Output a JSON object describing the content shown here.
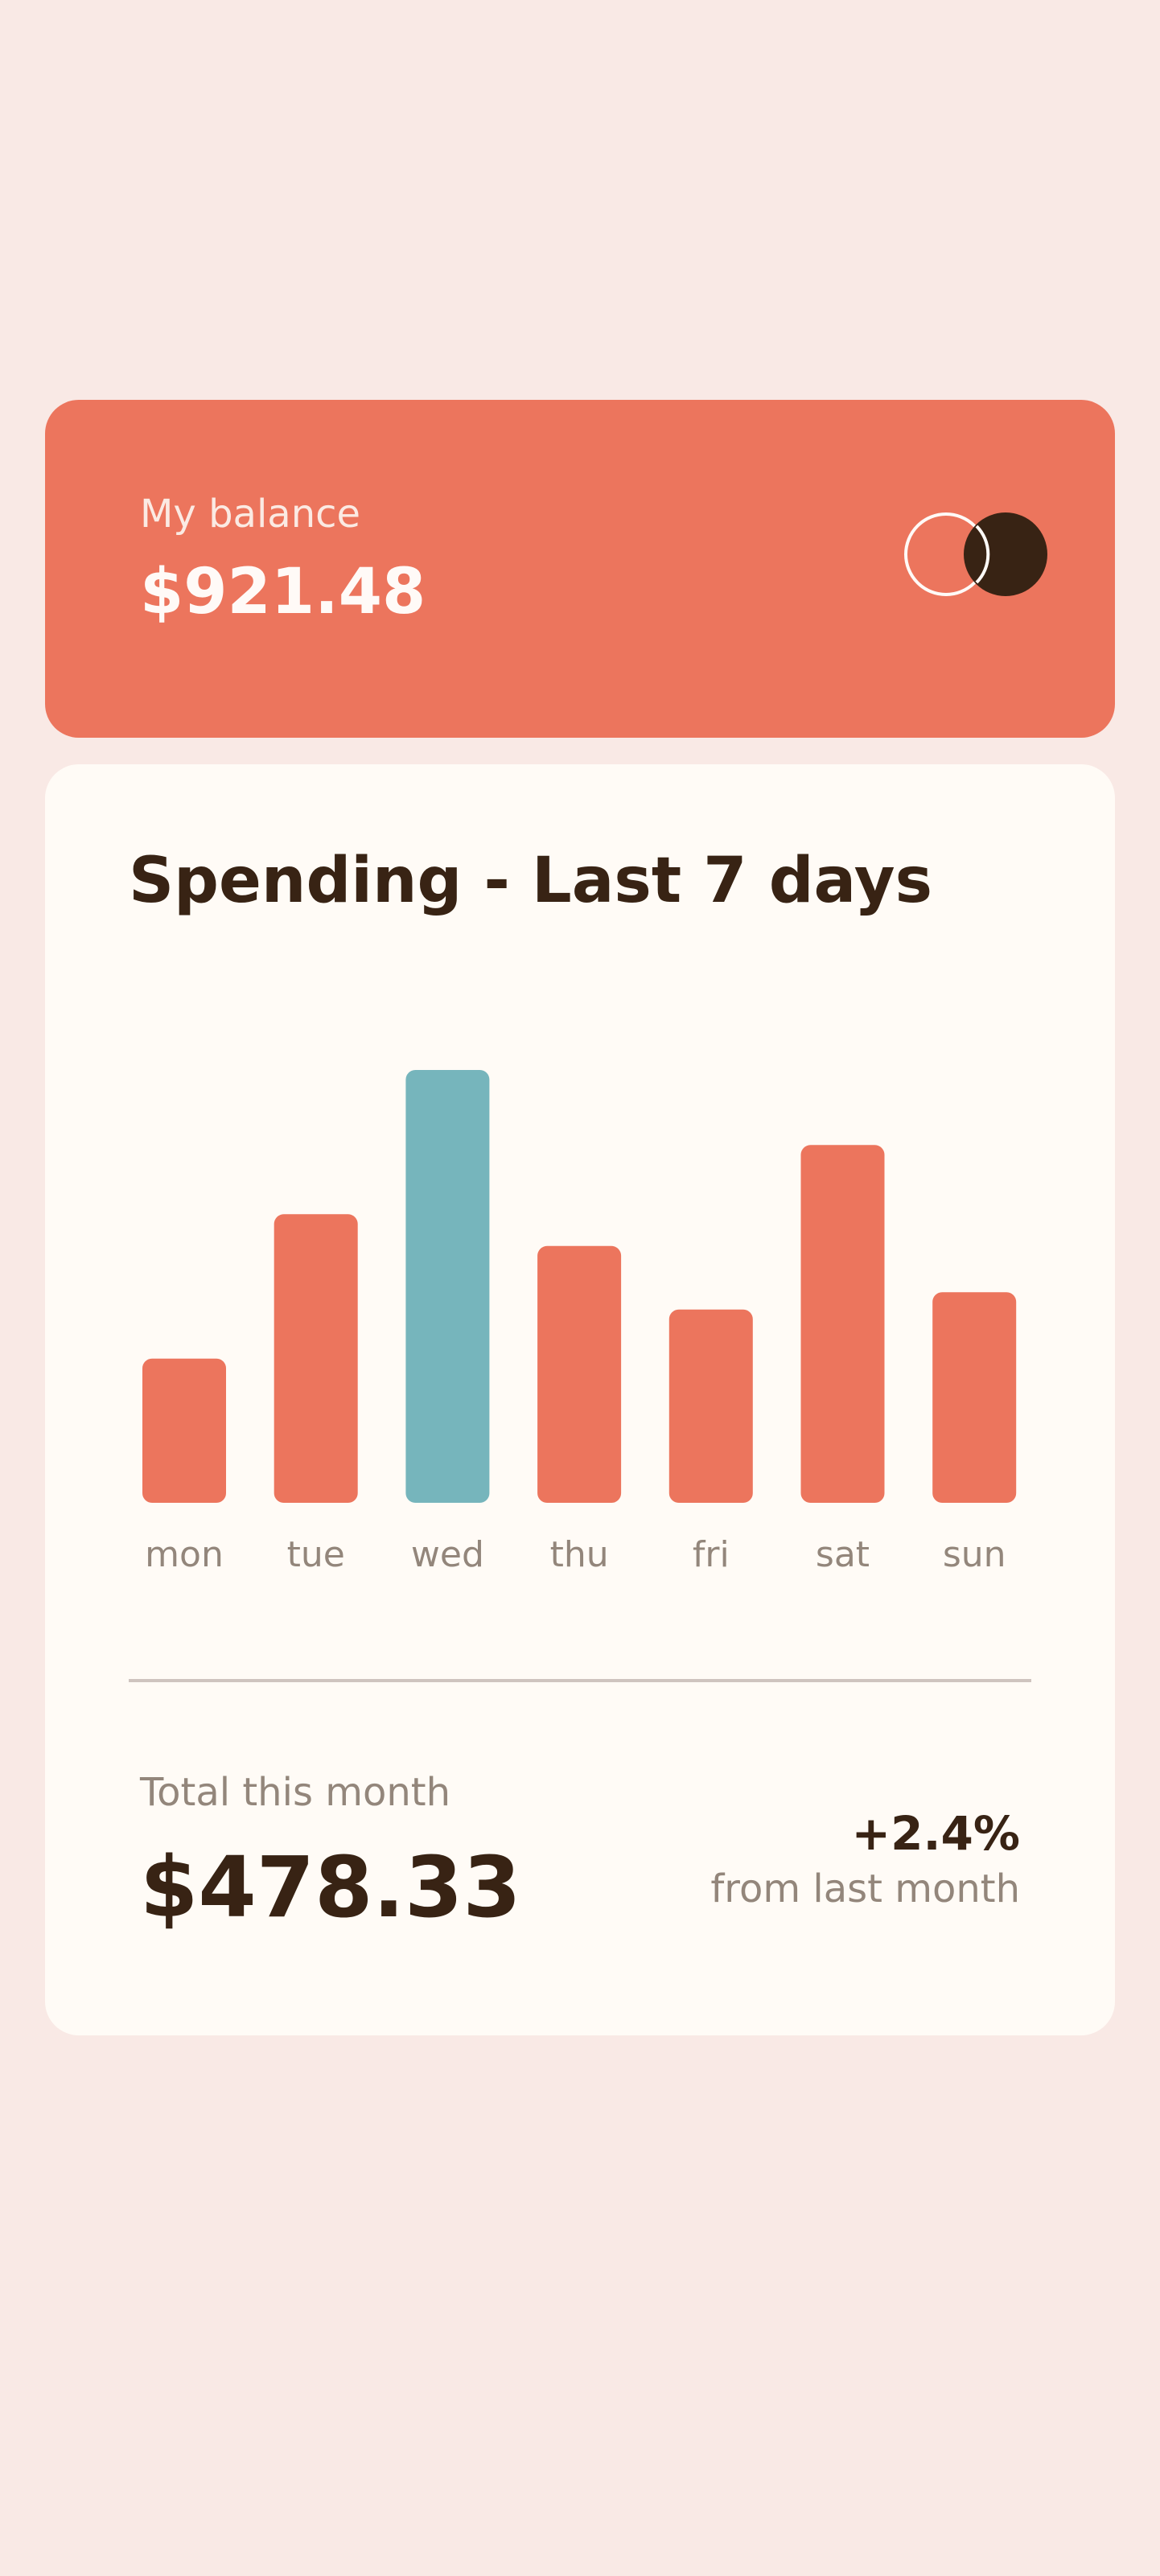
{
  "balance": {
    "label": "My balance",
    "amount": "$921.48"
  },
  "logo": {
    "icon": "overlapping-circles-logo"
  },
  "spending": {
    "title": "Spending - Last 7 days",
    "total_label": "Total this month",
    "total_amount": "$478.33",
    "change_value": "+2.4%",
    "change_label": "from last month"
  },
  "colors": {
    "accent": "#ec755d",
    "highlight": "#76b5bc",
    "text_dark": "#382314",
    "text_muted": "#93867b",
    "page_bg": "#f9e9e5",
    "card_bg": "#fffbf6"
  },
  "chart_data": {
    "type": "bar",
    "categories": [
      "mon",
      "tue",
      "wed",
      "thu",
      "fri",
      "sat",
      "sun"
    ],
    "values": [
      17.45,
      34.91,
      52.36,
      31.07,
      23.39,
      43.28,
      25.48
    ],
    "highlight_index": 2,
    "title": "",
    "xlabel": "",
    "ylabel": "",
    "ylim": [
      0,
      52.36
    ],
    "grid": false
  }
}
